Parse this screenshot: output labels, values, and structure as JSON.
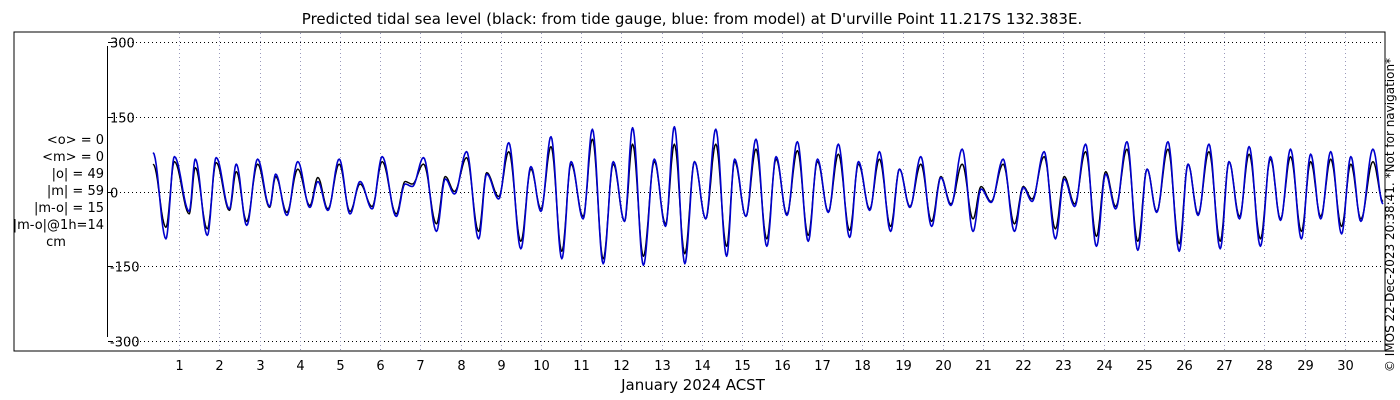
{
  "chart_data": {
    "type": "line",
    "title": "Predicted tidal sea level (black: from tide gauge, blue: from model) at D'urville Point 11.217S 132.383E.",
    "xlabel": "January 2024 ACST",
    "ylabel": "",
    "xlim": [
      0.0,
      31.0
    ],
    "ylim": [
      -320,
      320
    ],
    "yticks": [
      300,
      150,
      0,
      -150,
      -300
    ],
    "yticklabels": [
      "300",
      "150",
      "0",
      "-150",
      "-300"
    ],
    "xticks": [
      1,
      2,
      3,
      4,
      5,
      6,
      7,
      8,
      9,
      10,
      11,
      12,
      13,
      14,
      15,
      16,
      17,
      18,
      19,
      20,
      21,
      22,
      23,
      24,
      25,
      26,
      27,
      28,
      29,
      30
    ],
    "xticklabels": [
      "1",
      "2",
      "3",
      "4",
      "5",
      "6",
      "7",
      "8",
      "9",
      "10",
      "11",
      "12",
      "13",
      "14",
      "15",
      "16",
      "17",
      "18",
      "19",
      "20",
      "21",
      "22",
      "23",
      "24",
      "25",
      "26",
      "27",
      "28",
      "29",
      "30"
    ],
    "grid": true,
    "series": [
      {
        "name": "from tide gauge",
        "color": "#000000",
        "peaks": [
          {
            "x": 0.35,
            "y": 55
          },
          {
            "x": 0.67,
            "y": -72
          },
          {
            "x": 0.88,
            "y": 60
          },
          {
            "x": 1.25,
            "y": -45
          },
          {
            "x": 1.4,
            "y": 48
          },
          {
            "x": 1.7,
            "y": -75
          },
          {
            "x": 1.92,
            "y": 58
          },
          {
            "x": 2.25,
            "y": -38
          },
          {
            "x": 2.42,
            "y": 40
          },
          {
            "x": 2.68,
            "y": -60
          },
          {
            "x": 2.95,
            "y": 55
          },
          {
            "x": 3.25,
            "y": -32
          },
          {
            "x": 3.4,
            "y": 30
          },
          {
            "x": 3.68,
            "y": -42
          },
          {
            "x": 3.95,
            "y": 45
          },
          {
            "x": 4.25,
            "y": -28
          },
          {
            "x": 4.45,
            "y": 28
          },
          {
            "x": 4.7,
            "y": -35
          },
          {
            "x": 4.98,
            "y": 55
          },
          {
            "x": 5.25,
            "y": -40
          },
          {
            "x": 5.5,
            "y": 15
          },
          {
            "x": 5.8,
            "y": -30
          },
          {
            "x": 6.05,
            "y": 60
          },
          {
            "x": 6.4,
            "y": -45
          },
          {
            "x": 6.62,
            "y": 20
          },
          {
            "x": 6.8,
            "y": 15
          },
          {
            "x": 7.08,
            "y": 55
          },
          {
            "x": 7.4,
            "y": -65
          },
          {
            "x": 7.62,
            "y": 30
          },
          {
            "x": 7.85,
            "y": 0
          },
          {
            "x": 8.15,
            "y": 68
          },
          {
            "x": 8.45,
            "y": -80
          },
          {
            "x": 8.65,
            "y": 38
          },
          {
            "x": 8.95,
            "y": -10
          },
          {
            "x": 9.2,
            "y": 80
          },
          {
            "x": 9.5,
            "y": -100
          },
          {
            "x": 9.75,
            "y": 45
          },
          {
            "x": 10.0,
            "y": -35
          },
          {
            "x": 10.25,
            "y": 90
          },
          {
            "x": 10.52,
            "y": -120
          },
          {
            "x": 10.75,
            "y": 55
          },
          {
            "x": 11.05,
            "y": -50
          },
          {
            "x": 11.28,
            "y": 105
          },
          {
            "x": 11.55,
            "y": -135
          },
          {
            "x": 11.8,
            "y": 55
          },
          {
            "x": 12.08,
            "y": -60
          },
          {
            "x": 12.28,
            "y": 95
          },
          {
            "x": 12.55,
            "y": -130
          },
          {
            "x": 12.82,
            "y": 60
          },
          {
            "x": 13.1,
            "y": -65
          },
          {
            "x": 13.32,
            "y": 95
          },
          {
            "x": 13.58,
            "y": -125
          },
          {
            "x": 13.82,
            "y": 60
          },
          {
            "x": 14.1,
            "y": -55
          },
          {
            "x": 14.35,
            "y": 95
          },
          {
            "x": 14.62,
            "y": -110
          },
          {
            "x": 14.82,
            "y": 60
          },
          {
            "x": 15.1,
            "y": -50
          },
          {
            "x": 15.35,
            "y": 85
          },
          {
            "x": 15.62,
            "y": -95
          },
          {
            "x": 15.85,
            "y": 65
          },
          {
            "x": 16.12,
            "y": -45
          },
          {
            "x": 16.38,
            "y": 82
          },
          {
            "x": 16.65,
            "y": -88
          },
          {
            "x": 16.88,
            "y": 60
          },
          {
            "x": 17.15,
            "y": -40
          },
          {
            "x": 17.4,
            "y": 75
          },
          {
            "x": 17.68,
            "y": -78
          },
          {
            "x": 17.9,
            "y": 55
          },
          {
            "x": 18.18,
            "y": -35
          },
          {
            "x": 18.42,
            "y": 65
          },
          {
            "x": 18.7,
            "y": -70
          },
          {
            "x": 18.92,
            "y": 45
          },
          {
            "x": 19.18,
            "y": -30
          },
          {
            "x": 19.45,
            "y": 55
          },
          {
            "x": 19.72,
            "y": -60
          },
          {
            "x": 19.95,
            "y": 30
          },
          {
            "x": 20.2,
            "y": -25
          },
          {
            "x": 20.48,
            "y": 55
          },
          {
            "x": 20.75,
            "y": -55
          },
          {
            "x": 20.95,
            "y": 10
          },
          {
            "x": 21.2,
            "y": -20
          },
          {
            "x": 21.5,
            "y": 55
          },
          {
            "x": 21.78,
            "y": -65
          },
          {
            "x": 22.0,
            "y": 10
          },
          {
            "x": 22.22,
            "y": -15
          },
          {
            "x": 22.52,
            "y": 70
          },
          {
            "x": 22.8,
            "y": -75
          },
          {
            "x": 23.02,
            "y": 30
          },
          {
            "x": 23.28,
            "y": -25
          },
          {
            "x": 23.55,
            "y": 80
          },
          {
            "x": 23.82,
            "y": -90
          },
          {
            "x": 24.05,
            "y": 40
          },
          {
            "x": 24.3,
            "y": -30
          },
          {
            "x": 24.58,
            "y": 85
          },
          {
            "x": 24.85,
            "y": -100
          },
          {
            "x": 25.08,
            "y": 45
          },
          {
            "x": 25.32,
            "y": -40
          },
          {
            "x": 25.6,
            "y": 85
          },
          {
            "x": 25.88,
            "y": -105
          },
          {
            "x": 26.1,
            "y": 55
          },
          {
            "x": 26.35,
            "y": -45
          },
          {
            "x": 26.62,
            "y": 80
          },
          {
            "x": 26.9,
            "y": -100
          },
          {
            "x": 27.12,
            "y": 60
          },
          {
            "x": 27.38,
            "y": -50
          },
          {
            "x": 27.62,
            "y": 75
          },
          {
            "x": 27.9,
            "y": -95
          },
          {
            "x": 28.15,
            "y": 65
          },
          {
            "x": 28.4,
            "y": -55
          },
          {
            "x": 28.65,
            "y": 70
          },
          {
            "x": 28.92,
            "y": -80
          },
          {
            "x": 29.15,
            "y": 60
          },
          {
            "x": 29.4,
            "y": -50
          },
          {
            "x": 29.65,
            "y": 65
          },
          {
            "x": 29.92,
            "y": -70
          },
          {
            "x": 30.15,
            "y": 55
          },
          {
            "x": 30.4,
            "y": -55
          },
          {
            "x": 30.7,
            "y": 60
          },
          {
            "x": 30.95,
            "y": -20
          }
        ]
      },
      {
        "name": "from model",
        "color": "#0000cc",
        "peaks": [
          {
            "x": 0.35,
            "y": 78
          },
          {
            "x": 0.67,
            "y": -95
          },
          {
            "x": 0.88,
            "y": 70
          },
          {
            "x": 1.25,
            "y": -40
          },
          {
            "x": 1.4,
            "y": 65
          },
          {
            "x": 1.7,
            "y": -88
          },
          {
            "x": 1.92,
            "y": 68
          },
          {
            "x": 2.25,
            "y": -35
          },
          {
            "x": 2.42,
            "y": 55
          },
          {
            "x": 2.68,
            "y": -68
          },
          {
            "x": 2.95,
            "y": 65
          },
          {
            "x": 3.25,
            "y": -30
          },
          {
            "x": 3.4,
            "y": 35
          },
          {
            "x": 3.68,
            "y": -48
          },
          {
            "x": 3.95,
            "y": 60
          },
          {
            "x": 4.25,
            "y": -32
          },
          {
            "x": 4.45,
            "y": 20
          },
          {
            "x": 4.7,
            "y": -38
          },
          {
            "x": 4.98,
            "y": 65
          },
          {
            "x": 5.25,
            "y": -45
          },
          {
            "x": 5.5,
            "y": 20
          },
          {
            "x": 5.8,
            "y": -35
          },
          {
            "x": 6.05,
            "y": 70
          },
          {
            "x": 6.4,
            "y": -50
          },
          {
            "x": 6.62,
            "y": 15
          },
          {
            "x": 6.8,
            "y": 10
          },
          {
            "x": 7.08,
            "y": 68
          },
          {
            "x": 7.4,
            "y": -80
          },
          {
            "x": 7.62,
            "y": 25
          },
          {
            "x": 7.85,
            "y": -5
          },
          {
            "x": 8.15,
            "y": 80
          },
          {
            "x": 8.45,
            "y": -95
          },
          {
            "x": 8.65,
            "y": 35
          },
          {
            "x": 8.95,
            "y": -15
          },
          {
            "x": 9.2,
            "y": 98
          },
          {
            "x": 9.5,
            "y": -115
          },
          {
            "x": 9.75,
            "y": 50
          },
          {
            "x": 10.0,
            "y": -40
          },
          {
            "x": 10.25,
            "y": 110
          },
          {
            "x": 10.52,
            "y": -135
          },
          {
            "x": 10.75,
            "y": 60
          },
          {
            "x": 11.05,
            "y": -55
          },
          {
            "x": 11.28,
            "y": 125
          },
          {
            "x": 11.55,
            "y": -145
          },
          {
            "x": 11.8,
            "y": 60
          },
          {
            "x": 12.08,
            "y": -60
          },
          {
            "x": 12.28,
            "y": 128
          },
          {
            "x": 12.55,
            "y": -148
          },
          {
            "x": 12.82,
            "y": 65
          },
          {
            "x": 13.1,
            "y": -70
          },
          {
            "x": 13.32,
            "y": 130
          },
          {
            "x": 13.58,
            "y": -145
          },
          {
            "x": 13.82,
            "y": 60
          },
          {
            "x": 14.1,
            "y": -55
          },
          {
            "x": 14.35,
            "y": 125
          },
          {
            "x": 14.62,
            "y": -130
          },
          {
            "x": 14.82,
            "y": 65
          },
          {
            "x": 15.1,
            "y": -50
          },
          {
            "x": 15.35,
            "y": 105
          },
          {
            "x": 15.62,
            "y": -110
          },
          {
            "x": 15.85,
            "y": 70
          },
          {
            "x": 16.12,
            "y": -48
          },
          {
            "x": 16.38,
            "y": 100
          },
          {
            "x": 16.65,
            "y": -100
          },
          {
            "x": 16.88,
            "y": 65
          },
          {
            "x": 17.15,
            "y": -42
          },
          {
            "x": 17.4,
            "y": 95
          },
          {
            "x": 17.68,
            "y": -92
          },
          {
            "x": 17.9,
            "y": 60
          },
          {
            "x": 18.18,
            "y": -38
          },
          {
            "x": 18.42,
            "y": 80
          },
          {
            "x": 18.7,
            "y": -80
          },
          {
            "x": 18.92,
            "y": 45
          },
          {
            "x": 19.18,
            "y": -32
          },
          {
            "x": 19.45,
            "y": 70
          },
          {
            "x": 19.72,
            "y": -70
          },
          {
            "x": 19.95,
            "y": 28
          },
          {
            "x": 20.2,
            "y": -28
          },
          {
            "x": 20.48,
            "y": 85
          },
          {
            "x": 20.75,
            "y": -80
          },
          {
            "x": 20.95,
            "y": 5
          },
          {
            "x": 21.2,
            "y": -22
          },
          {
            "x": 21.5,
            "y": 65
          },
          {
            "x": 21.78,
            "y": -80
          },
          {
            "x": 22.0,
            "y": 8
          },
          {
            "x": 22.22,
            "y": -20
          },
          {
            "x": 22.52,
            "y": 80
          },
          {
            "x": 22.8,
            "y": -95
          },
          {
            "x": 23.02,
            "y": 25
          },
          {
            "x": 23.28,
            "y": -30
          },
          {
            "x": 23.55,
            "y": 95
          },
          {
            "x": 23.82,
            "y": -110
          },
          {
            "x": 24.05,
            "y": 35
          },
          {
            "x": 24.3,
            "y": -35
          },
          {
            "x": 24.58,
            "y": 100
          },
          {
            "x": 24.85,
            "y": -118
          },
          {
            "x": 25.08,
            "y": 45
          },
          {
            "x": 25.32,
            "y": -42
          },
          {
            "x": 25.6,
            "y": 100
          },
          {
            "x": 25.88,
            "y": -120
          },
          {
            "x": 26.1,
            "y": 55
          },
          {
            "x": 26.35,
            "y": -48
          },
          {
            "x": 26.62,
            "y": 95
          },
          {
            "x": 26.9,
            "y": -115
          },
          {
            "x": 27.12,
            "y": 60
          },
          {
            "x": 27.38,
            "y": -55
          },
          {
            "x": 27.62,
            "y": 90
          },
          {
            "x": 27.9,
            "y": -110
          },
          {
            "x": 28.15,
            "y": 70
          },
          {
            "x": 28.4,
            "y": -58
          },
          {
            "x": 28.65,
            "y": 85
          },
          {
            "x": 28.92,
            "y": -95
          },
          {
            "x": 29.15,
            "y": 75
          },
          {
            "x": 29.4,
            "y": -55
          },
          {
            "x": 29.65,
            "y": 80
          },
          {
            "x": 29.92,
            "y": -85
          },
          {
            "x": 30.15,
            "y": 70
          },
          {
            "x": 30.4,
            "y": -60
          },
          {
            "x": 30.7,
            "y": 85
          },
          {
            "x": 30.95,
            "y": -25
          }
        ]
      }
    ]
  },
  "stats": {
    "mean_obs": "<o> = 0",
    "mean_model": "<m> = 0",
    "abs_obs": "|o| = 49",
    "abs_model": "|m| = 59",
    "abs_diff": "|m-o| = 15",
    "abs_diff_1h": "|m-o|@1h=14",
    "unit": "cm"
  },
  "watermark": "© IMOS 22-Dec-2023 20:38:41. *Not for navigation*"
}
